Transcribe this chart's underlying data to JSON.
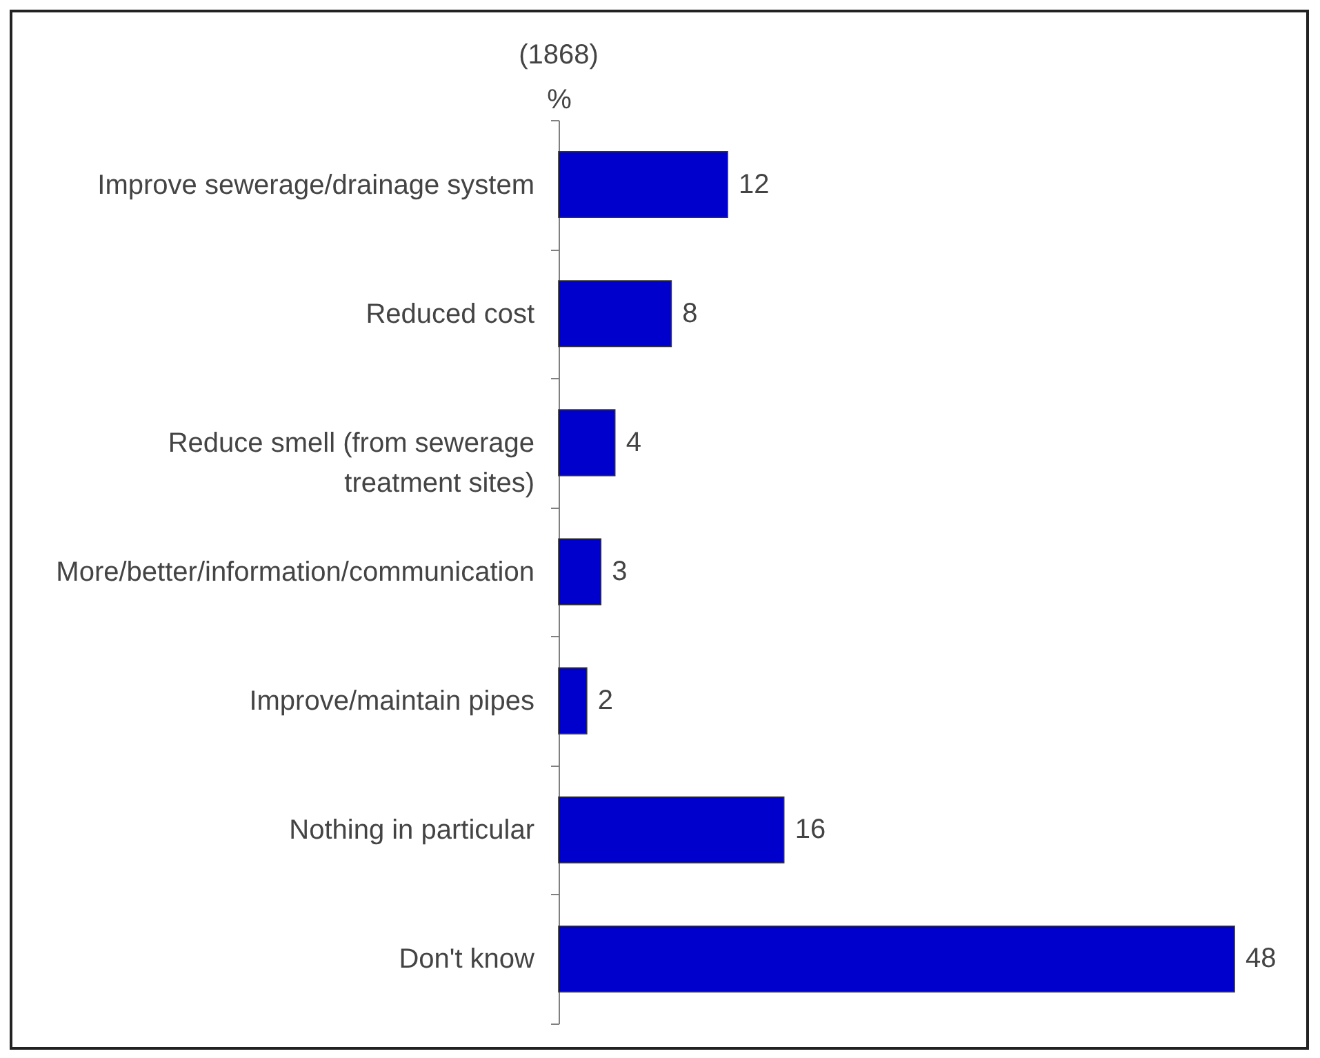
{
  "chart_data": {
    "type": "bar",
    "orientation": "horizontal",
    "title": "(1868)",
    "xlabel": "%",
    "categories": [
      "Improve sewerage/drainage system",
      "Reduced cost",
      "Reduce smell (from sewerage treatment sites)",
      "More/better/information/communication",
      "Improve/maintain pipes",
      "Nothing in particular",
      "Don't know"
    ],
    "values": [
      12,
      8,
      4,
      3,
      2,
      16,
      48
    ],
    "color": "#0000cc",
    "data_labels": true
  }
}
